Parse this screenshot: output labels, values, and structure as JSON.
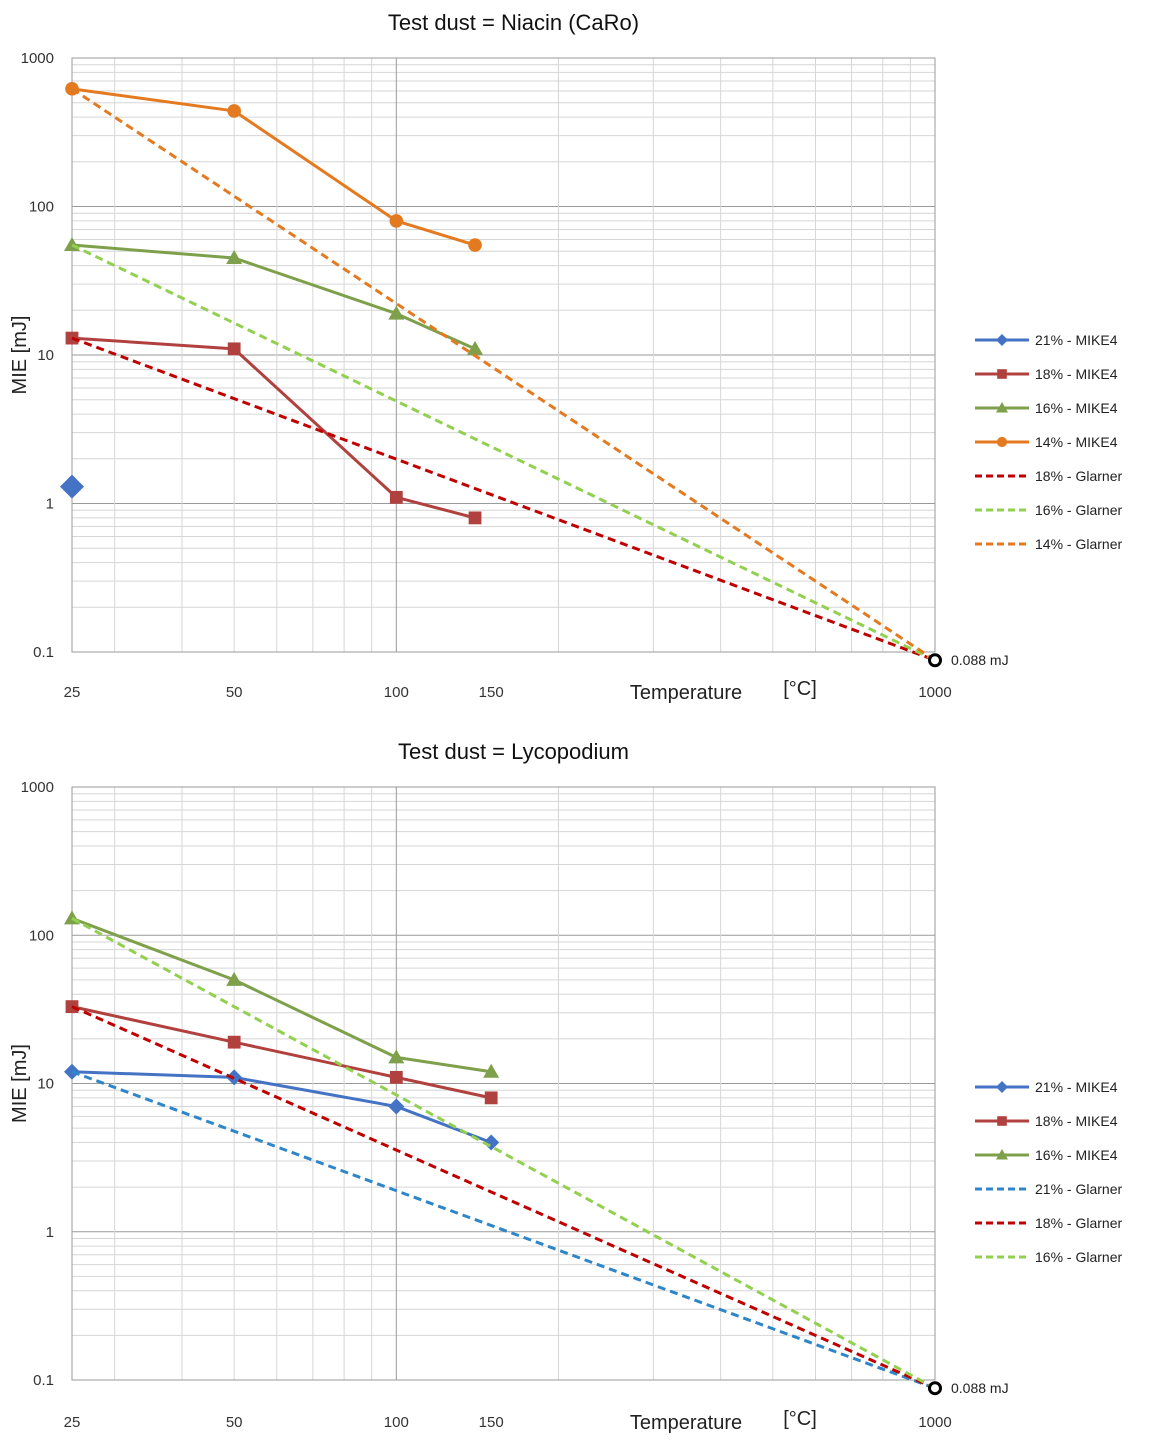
{
  "chart_data": [
    {
      "type": "line",
      "title": "Test dust = Niacin (CaRo)",
      "xlabel": "Temperature",
      "xunit": "[°C]",
      "ylabel": "MIE [mJ]",
      "xscale": "log",
      "yscale": "log",
      "xlim": [
        25,
        1000
      ],
      "ylim": [
        0.1,
        1000
      ],
      "xticks": [
        "25",
        "50",
        "100",
        "150",
        "1000"
      ],
      "yticks": [
        "1000",
        "100",
        "10",
        "1",
        "0.1"
      ],
      "grid": true,
      "legend_position": "right",
      "annotation": "0.088 mJ",
      "series": [
        {
          "name": "21% - MIKE4",
          "style": "solid",
          "marker": "diamond",
          "color": "#4472C4",
          "x": [
            25
          ],
          "y": [
            1.3
          ]
        },
        {
          "name": "18% - MIKE4",
          "style": "solid",
          "marker": "square",
          "color": "#B0413E",
          "x": [
            25,
            50,
            100,
            140
          ],
          "y": [
            13,
            11,
            1.1,
            0.8
          ]
        },
        {
          "name": "16% - MIKE4",
          "style": "solid",
          "marker": "triangle",
          "color": "#7EA04B",
          "x": [
            25,
            50,
            100,
            140
          ],
          "y": [
            55,
            45,
            19,
            11
          ]
        },
        {
          "name": "14% - MIKE4",
          "style": "solid",
          "marker": "circle",
          "color": "#E47A20",
          "x": [
            25,
            50,
            100,
            140
          ],
          "y": [
            620,
            440,
            80,
            55
          ]
        },
        {
          "name": "18% - Glarner",
          "style": "dashed",
          "marker": "none",
          "color": "#C00000",
          "x": [
            25,
            1000
          ],
          "y": [
            13,
            0.088
          ]
        },
        {
          "name": "16% - Glarner",
          "style": "dashed",
          "marker": "none",
          "color": "#92D050",
          "x": [
            25,
            1000
          ],
          "y": [
            55,
            0.088
          ]
        },
        {
          "name": "14% - Glarner",
          "style": "dashed",
          "marker": "none",
          "color": "#E47A20",
          "x": [
            25,
            1000
          ],
          "y": [
            620,
            0.088
          ]
        }
      ]
    },
    {
      "type": "line",
      "title": "Test dust = Lycopodium",
      "xlabel": "Temperature",
      "xunit": "[°C]",
      "ylabel": "MIE [mJ]",
      "xscale": "log",
      "yscale": "log",
      "xlim": [
        25,
        1000
      ],
      "ylim": [
        0.1,
        1000
      ],
      "xticks": [
        "25",
        "50",
        "100",
        "150",
        "1000"
      ],
      "yticks": [
        "1000",
        "100",
        "10",
        "1",
        "0.1"
      ],
      "grid": true,
      "legend_position": "right",
      "annotation": "0.088 mJ",
      "series": [
        {
          "name": "21% - MIKE4",
          "style": "solid",
          "marker": "diamond",
          "color": "#4472C4",
          "x": [
            25,
            50,
            100,
            150
          ],
          "y": [
            12,
            11,
            7,
            4
          ]
        },
        {
          "name": "18% - MIKE4",
          "style": "solid",
          "marker": "square",
          "color": "#B0413E",
          "x": [
            25,
            50,
            100,
            150
          ],
          "y": [
            33,
            19,
            11,
            8
          ]
        },
        {
          "name": "16% - MIKE4",
          "style": "solid",
          "marker": "triangle",
          "color": "#7EA04B",
          "x": [
            25,
            50,
            100,
            150
          ],
          "y": [
            130,
            50,
            15,
            12
          ]
        },
        {
          "name": "21% - Glarner",
          "style": "dashed",
          "marker": "none",
          "color": "#2E86C8",
          "x": [
            25,
            1000
          ],
          "y": [
            12,
            0.088
          ]
        },
        {
          "name": "18% - Glarner",
          "style": "dashed",
          "marker": "none",
          "color": "#C00000",
          "x": [
            25,
            1000
          ],
          "y": [
            33,
            0.088
          ]
        },
        {
          "name": "16% - Glarner",
          "style": "dashed",
          "marker": "none",
          "color": "#92D050",
          "x": [
            25,
            1000
          ],
          "y": [
            130,
            0.088
          ]
        }
      ]
    }
  ]
}
